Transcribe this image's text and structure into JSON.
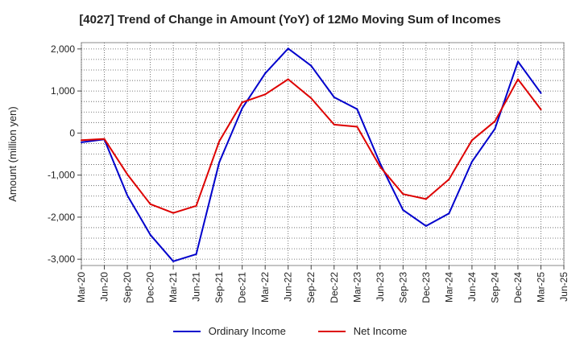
{
  "title": "[4027]  Trend of Change in Amount (YoY) of 12Mo Moving Sum of Incomes",
  "chart_data": {
    "type": "line",
    "title": "[4027]  Trend of Change in Amount (YoY) of 12Mo Moving Sum of Incomes",
    "xlabel": "",
    "ylabel": "Amount (million yen)",
    "ylim": [
      -3150,
      2150
    ],
    "yticks": [
      2000,
      1000,
      0,
      -1000,
      -2000,
      -3000
    ],
    "ytick_labels": [
      "2,000",
      "1,000",
      "0",
      "-1,000",
      "-2,000",
      "-3,000"
    ],
    "categories": [
      "Mar-20",
      "Jun-20",
      "Sep-20",
      "Dec-20",
      "Mar-21",
      "Jun-21",
      "Sep-21",
      "Dec-21",
      "Mar-22",
      "Jun-22",
      "Sep-22",
      "Dec-22",
      "Mar-23",
      "Jun-23",
      "Sep-23",
      "Dec-23",
      "Mar-24",
      "Jun-24",
      "Sep-24",
      "Dec-24",
      "Mar-25",
      "Jun-25"
    ],
    "grid": true,
    "legend_position": "bottom-center",
    "series": [
      {
        "name": "Ordinary Income",
        "color": "#0000cc",
        "values": [
          -220,
          -150,
          -1480,
          -2420,
          -3050,
          -2880,
          -700,
          590,
          1420,
          2010,
          1600,
          850,
          570,
          -720,
          -1830,
          -2210,
          -1910,
          -680,
          100,
          1700,
          950,
          null
        ]
      },
      {
        "name": "Net Income",
        "color": "#dd0000",
        "values": [
          -170,
          -140,
          -980,
          -1690,
          -1900,
          -1730,
          -200,
          730,
          920,
          1280,
          830,
          200,
          150,
          -800,
          -1450,
          -1570,
          -1100,
          -170,
          280,
          1280,
          560,
          null
        ]
      }
    ]
  }
}
